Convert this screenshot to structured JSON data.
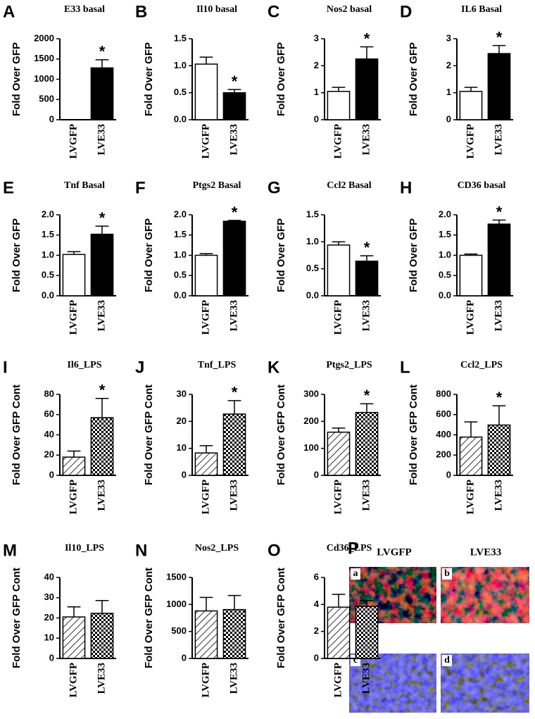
{
  "chart_data": [
    {
      "type": "bar",
      "panel": "A",
      "title": "E33 basal",
      "ylabel": "Fold Over GFP",
      "categories": [
        "LVGFP",
        "LVE33"
      ],
      "values": [
        1,
        1280
      ],
      "errors": [
        0,
        200
      ],
      "patterns": [
        "open",
        "solid"
      ],
      "significance": [
        null,
        "*"
      ],
      "ylim": [
        0,
        2000
      ],
      "yticks": [
        0,
        500,
        1000,
        1500,
        2000
      ]
    },
    {
      "type": "bar",
      "panel": "B",
      "title": "Il10 basal",
      "ylabel": "Fold Over GFP",
      "categories": [
        "LVGFP",
        "LVE33"
      ],
      "values": [
        1.03,
        0.5
      ],
      "errors": [
        0.13,
        0.06
      ],
      "patterns": [
        "open",
        "solid"
      ],
      "significance": [
        null,
        "*"
      ],
      "ylim": [
        0,
        1.5
      ],
      "yticks": [
        {
          "value": 0,
          "label": "0.0"
        },
        0.5,
        {
          "value": 1,
          "label": "1.0"
        },
        1.5
      ]
    },
    {
      "type": "bar",
      "panel": "C",
      "title": "Nos2 basal",
      "ylabel": "Fold Over GFP",
      "categories": [
        "LVGFP",
        "LVE33"
      ],
      "values": [
        1.05,
        2.25
      ],
      "errors": [
        0.15,
        0.45
      ],
      "patterns": [
        "open",
        "solid"
      ],
      "significance": [
        null,
        "*"
      ],
      "ylim": [
        0,
        3
      ],
      "yticks": [
        0,
        1,
        2,
        3
      ]
    },
    {
      "type": "bar",
      "panel": "D",
      "title": "IL6 Basal",
      "ylabel": "Fold Over GFP",
      "categories": [
        "LVGFP",
        "LVE33"
      ],
      "values": [
        1.05,
        2.45
      ],
      "errors": [
        0.15,
        0.3
      ],
      "patterns": [
        "open",
        "solid"
      ],
      "significance": [
        null,
        "*"
      ],
      "ylim": [
        0,
        3
      ],
      "yticks": [
        0,
        1,
        2,
        3
      ]
    },
    {
      "type": "bar",
      "panel": "E",
      "title": "Tnf Basal",
      "ylabel": "Fold Over GFP",
      "categories": [
        "LVGFP",
        "LVE33"
      ],
      "values": [
        1.02,
        1.52
      ],
      "errors": [
        0.07,
        0.2
      ],
      "patterns": [
        "open",
        "solid"
      ],
      "significance": [
        null,
        "*"
      ],
      "ylim": [
        0,
        2
      ],
      "yticks": [
        {
          "value": 0,
          "label": "0.0"
        },
        0.5,
        {
          "value": 1,
          "label": "1.0"
        },
        1.5,
        {
          "value": 2,
          "label": "2.0"
        }
      ]
    },
    {
      "type": "bar",
      "panel": "F",
      "title": "Ptgs2 Basal",
      "ylabel": "Fold Over GFP",
      "categories": [
        "LVGFP",
        "LVE33"
      ],
      "values": [
        1.0,
        1.84
      ],
      "errors": [
        0.04,
        0.02
      ],
      "patterns": [
        "open",
        "solid"
      ],
      "significance": [
        null,
        "*"
      ],
      "ylim": [
        0,
        2
      ],
      "yticks": [
        {
          "value": 0,
          "label": "0.0"
        },
        0.5,
        {
          "value": 1,
          "label": "1.0"
        },
        1.5,
        {
          "value": 2,
          "label": "2.0"
        }
      ]
    },
    {
      "type": "bar",
      "panel": "G",
      "title": "Ccl2 Basal",
      "ylabel": "Fold Over GFP",
      "categories": [
        "LVGFP",
        "LVE33"
      ],
      "values": [
        0.94,
        0.64
      ],
      "errors": [
        0.06,
        0.1
      ],
      "patterns": [
        "open",
        "solid"
      ],
      "significance": [
        null,
        "*"
      ],
      "ylim": [
        0,
        1.5
      ],
      "yticks": [
        {
          "value": 0,
          "label": "0.0"
        },
        0.5,
        {
          "value": 1,
          "label": "1.0"
        },
        1.5
      ]
    },
    {
      "type": "bar",
      "panel": "H",
      "title": "CD36 basal",
      "ylabel": "Fold Over GFP",
      "categories": [
        "LVGFP",
        "LVE33"
      ],
      "values": [
        1.0,
        1.77
      ],
      "errors": [
        0.03,
        0.1
      ],
      "patterns": [
        "open",
        "solid"
      ],
      "significance": [
        null,
        "*"
      ],
      "ylim": [
        0,
        2
      ],
      "yticks": [
        {
          "value": 0,
          "label": "0.0"
        },
        0.5,
        {
          "value": 1,
          "label": "1.0"
        },
        1.5,
        {
          "value": 2,
          "label": "2.0"
        }
      ]
    },
    {
      "type": "bar",
      "panel": "I",
      "title": "Il6_LPS",
      "ylabel": "Fold Over GFP Cont",
      "categories": [
        "LVGFP",
        "LVE33"
      ],
      "values": [
        18,
        57
      ],
      "errors": [
        6,
        19
      ],
      "patterns": [
        "hatch",
        "checker"
      ],
      "significance": [
        null,
        "*"
      ],
      "ylim": [
        0,
        80
      ],
      "yticks": [
        0,
        20,
        40,
        60,
        80
      ]
    },
    {
      "type": "bar",
      "panel": "J",
      "title": "Tnf_LPS",
      "ylabel": "Fold Over GFP Cont",
      "categories": [
        "LVGFP",
        "LVE33"
      ],
      "values": [
        8.3,
        22.7
      ],
      "errors": [
        2.7,
        5
      ],
      "patterns": [
        "hatch",
        "checker"
      ],
      "significance": [
        null,
        "*"
      ],
      "ylim": [
        0,
        30
      ],
      "yticks": [
        0,
        10,
        20,
        30
      ]
    },
    {
      "type": "bar",
      "panel": "K",
      "title": "Ptgs2_LPS",
      "ylabel": "Fold Over GFP Cont",
      "categories": [
        "LVGFP",
        "LVE33"
      ],
      "values": [
        160,
        233
      ],
      "errors": [
        15,
        32
      ],
      "patterns": [
        "hatch",
        "checker"
      ],
      "significance": [
        null,
        "*"
      ],
      "ylim": [
        0,
        300
      ],
      "yticks": [
        0,
        100,
        200,
        300
      ]
    },
    {
      "type": "bar",
      "panel": "L",
      "title": "Ccl2_LPS",
      "ylabel": "Fold Over GFP Cont",
      "categories": [
        "LVGFP",
        "LVE33"
      ],
      "values": [
        378,
        497
      ],
      "errors": [
        150,
        190
      ],
      "patterns": [
        "hatch",
        "checker"
      ],
      "significance": [
        null,
        "*"
      ],
      "ylim": [
        0,
        800
      ],
      "yticks": [
        0,
        200,
        400,
        600,
        800
      ]
    },
    {
      "type": "bar",
      "panel": "M",
      "title": "Il10_LPS",
      "ylabel": "Fold Over GFP Cont",
      "categories": [
        "LVGFP",
        "LVE33"
      ],
      "values": [
        20.5,
        22.3
      ],
      "errors": [
        5,
        6.3
      ],
      "patterns": [
        "hatch",
        "checker"
      ],
      "ylim": [
        0,
        40
      ],
      "yticks": [
        0,
        10,
        20,
        30,
        40
      ]
    },
    {
      "type": "bar",
      "panel": "N",
      "title": "Nos2_LPS",
      "ylabel": "Fold Over GFP Cont",
      "categories": [
        "LVGFP",
        "LVE33"
      ],
      "values": [
        880,
        905
      ],
      "errors": [
        250,
        260
      ],
      "patterns": [
        "hatch",
        "checker"
      ],
      "ylim": [
        0,
        1500
      ],
      "yticks": [
        0,
        500,
        1000,
        1500
      ]
    },
    {
      "type": "bar",
      "panel": "O",
      "title": "Cd36_LPS",
      "ylabel": "Fold Over GFP Cont",
      "categories": [
        "LVGFP",
        "LVE33"
      ],
      "values": [
        3.8,
        3.85
      ],
      "errors": [
        0.95,
        0.45
      ],
      "patterns": [
        "hatch",
        "checker"
      ],
      "ylim": [
        0,
        6
      ],
      "yticks": [
        0,
        2,
        4,
        6
      ]
    }
  ],
  "image_panel": {
    "panel": "P",
    "columns": [
      "LVGFP",
      "LVE33"
    ],
    "images": [
      "a",
      "b",
      "c",
      "d"
    ]
  }
}
